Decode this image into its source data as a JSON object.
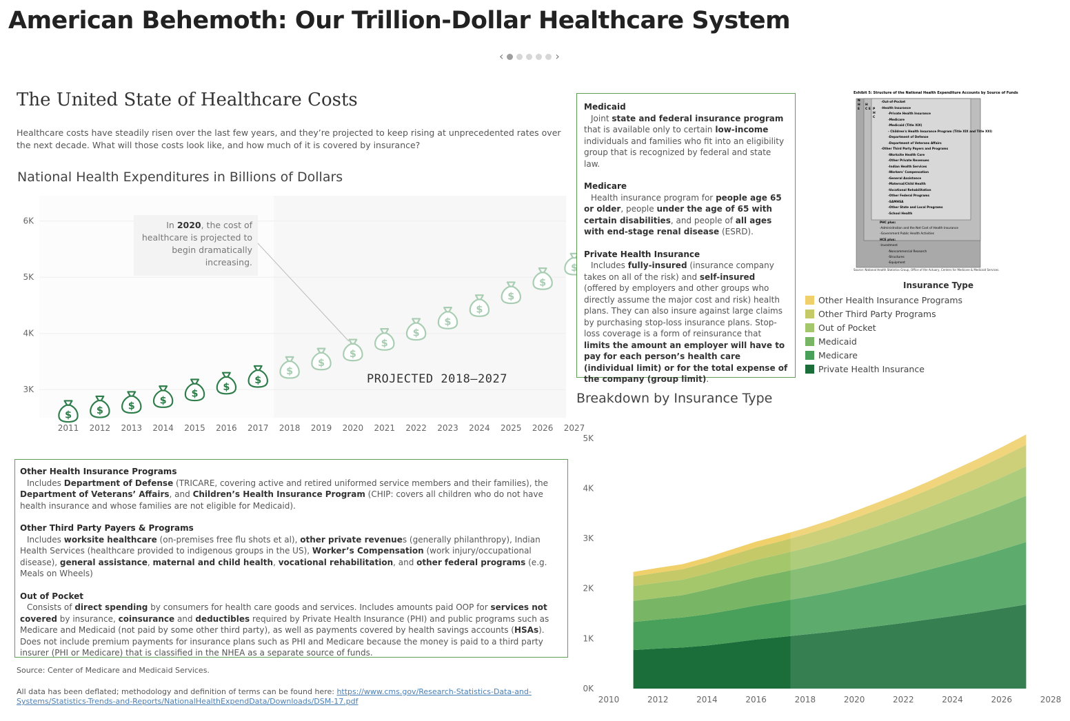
{
  "main_title": "American Behemoth: Our Trillion-Dollar Healthcare System",
  "story_nav": {
    "prev_icon": "‹",
    "next_icon": "›",
    "dots": 5,
    "active_dot": 0
  },
  "section": {
    "title": "The United State of Healthcare Costs",
    "intro": "Healthcare costs have steadily risen over the last few years, and they’re projected to keep rising at unprecedented rates over the next decade. What will those costs look like, and how much of it is covered by insurance?"
  },
  "chart_data": [
    {
      "type": "scatter",
      "title": "National Health Expenditures in Billions of Dollars",
      "marker": "money-bag-icon",
      "x": [
        "2011",
        "2012",
        "2013",
        "2014",
        "2015",
        "2016",
        "2017",
        "2018",
        "2019",
        "2020",
        "2021",
        "2022",
        "2023",
        "2024",
        "2025",
        "2026",
        "2027"
      ],
      "values": [
        2600,
        2680,
        2760,
        2860,
        2980,
        3100,
        3220,
        3380,
        3530,
        3690,
        3880,
        4060,
        4260,
        4480,
        4710,
        4960,
        5220
      ],
      "yticks": [
        "3K",
        "4K",
        "5K",
        "6K"
      ],
      "ytick_values": [
        3000,
        4000,
        5000,
        6000
      ],
      "ylim": [
        2500,
        6450
      ],
      "projected_from": "2018",
      "projection_label": "PROJECTED 2018–2027",
      "annotation": {
        "prefix": "In ",
        "year": "2020",
        "text": ", the cost of healthcare is projected to begin dramatically increasing.",
        "target": "2020"
      },
      "colors": {
        "actual": "#2e7d4a",
        "projected": "#a8cdb2",
        "projection_band": "#f7f7f7"
      }
    },
    {
      "type": "area",
      "stacked": true,
      "title": "Breakdown by Insurance Type",
      "x": [
        2011,
        2012,
        2013,
        2014,
        2015,
        2016,
        2017,
        2018,
        2019,
        2020,
        2021,
        2022,
        2023,
        2024,
        2025,
        2026,
        2027
      ],
      "xticks": [
        "2010",
        "2012",
        "2014",
        "2016",
        "2018",
        "2020",
        "2022",
        "2024",
        "2026",
        "2028"
      ],
      "xtick_values": [
        2010,
        2012,
        2014,
        2016,
        2018,
        2020,
        2022,
        2024,
        2026,
        2028
      ],
      "yticks": [
        "0K",
        "1K",
        "2K",
        "3K",
        "4K",
        "5K"
      ],
      "ytick_values": [
        0,
        1000,
        2000,
        3000,
        4000,
        5000
      ],
      "xlim": [
        2010,
        2028
      ],
      "ylim": [
        0,
        5300
      ],
      "projected_from": 2017.4,
      "series": [
        {
          "name": "Private Health Insurance",
          "color": "#1b6e39",
          "values": [
            770,
            800,
            820,
            860,
            920,
            980,
            1030,
            1080,
            1130,
            1190,
            1250,
            1310,
            1380,
            1450,
            1520,
            1600,
            1680
          ]
        },
        {
          "name": "Medicare",
          "color": "#48a05a",
          "values": [
            560,
            580,
            600,
            625,
            650,
            680,
            710,
            745,
            785,
            830,
            880,
            935,
            990,
            1050,
            1110,
            1175,
            1250
          ]
        },
        {
          "name": "Medicaid",
          "color": "#78b564",
          "values": [
            420,
            430,
            445,
            490,
            530,
            560,
            580,
            600,
            625,
            655,
            690,
            725,
            760,
            800,
            840,
            880,
            920
          ]
        },
        {
          "name": "Out of Pocket",
          "color": "#a3c76a",
          "values": [
            300,
            305,
            310,
            320,
            335,
            350,
            365,
            380,
            400,
            420,
            440,
            460,
            485,
            510,
            535,
            560,
            590
          ]
        },
        {
          "name": "Other Third Party Programs",
          "color": "#c6c967",
          "values": [
            190,
            200,
            210,
            220,
            235,
            250,
            260,
            275,
            290,
            305,
            320,
            335,
            350,
            370,
            390,
            410,
            430
          ]
        },
        {
          "name": "Other Health Insurance Programs",
          "color": "#f0d06b",
          "values": [
            90,
            95,
            100,
            105,
            110,
            115,
            120,
            125,
            132,
            140,
            148,
            156,
            165,
            175,
            185,
            195,
            205
          ]
        }
      ]
    }
  ],
  "legend": {
    "title": "Insurance Type"
  },
  "box_left": {
    "s1_head": "Other Health Insurance Programs",
    "s1_body": [
      {
        "t": "Includes "
      },
      {
        "t": "Department of Defense",
        "b": true
      },
      {
        "t": " (TRICARE, covering active and retired uniformed service members and their families), the "
      },
      {
        "t": "Department of Veterans’ Affairs",
        "b": true
      },
      {
        "t": ", and "
      },
      {
        "t": "Children’s Health Insurance Program",
        "b": true
      },
      {
        "t": " (CHIP: covers all children who do not have health insurance and whose families are not eligible for Medicaid)."
      }
    ],
    "s2_head": "Other Third Party Payers & Programs",
    "s2_body": [
      {
        "t": "Includes "
      },
      {
        "t": "worksite healthcare",
        "b": true
      },
      {
        "t": " (on-premises free flu shots et al), "
      },
      {
        "t": "other private revenue",
        "b": true
      },
      {
        "t": "s (generally philanthropy), Indian Health Services (healthcare provided to indigenous groups in the US), "
      },
      {
        "t": "Worker’s Compensation",
        "b": true
      },
      {
        "t": " (work injury/occupational disease), "
      },
      {
        "t": "general assistance",
        "b": true
      },
      {
        "t": ", "
      },
      {
        "t": "maternal and child health",
        "b": true
      },
      {
        "t": ", "
      },
      {
        "t": "vocational rehabilitation",
        "b": true
      },
      {
        "t": ", and "
      },
      {
        "t": "other federal programs",
        "b": true
      },
      {
        "t": " (e.g. Meals on Wheels)"
      }
    ],
    "s3_head": "Out of Pocket",
    "s3_body": [
      {
        "t": "Consists of "
      },
      {
        "t": "direct spending",
        "b": true
      },
      {
        "t": " by consumers for health care goods and services. Includes amounts paid OOP for "
      },
      {
        "t": "services not covered",
        "b": true
      },
      {
        "t": " by insurance, "
      },
      {
        "t": "coinsurance",
        "b": true
      },
      {
        "t": " and "
      },
      {
        "t": "deductibles",
        "b": true
      },
      {
        "t": " required by Private Health Insurance (PHI) and public programs such as Medicare and Medicaid (not paid by some other third party), as well as payments covered by health savings accounts ("
      },
      {
        "t": "HSAs",
        "b": true
      },
      {
        "t": "). Does not include premium payments for insurance plans such as PHI and Medicare because the money is paid to a third party insurer (PHI or Medicare) that is classified in the NHEA as a separate source of funds."
      }
    ]
  },
  "box_right": {
    "s1_head": "Medicaid",
    "s1_body": [
      {
        "t": "Joint "
      },
      {
        "t": "state and federal insurance program",
        "b": true
      },
      {
        "t": " that is available only to certain "
      },
      {
        "t": "low-income",
        "b": true
      },
      {
        "t": " individuals and families who fit into an eligibility group that is recognized by federal and state law."
      }
    ],
    "s2_head": "Medicare",
    "s2_body": [
      {
        "t": "Health insurance program for "
      },
      {
        "t": "people age 65 or older",
        "b": true
      },
      {
        "t": ", people "
      },
      {
        "t": "under the age of 65 with certain disabilities",
        "b": true
      },
      {
        "t": ", and people of "
      },
      {
        "t": "all ages with end-stage renal disease",
        "b": true
      },
      {
        "t": " (ESRD)."
      }
    ],
    "s3_head": "Private Health Insurance",
    "s3_body": [
      {
        "t": "Includes "
      },
      {
        "t": "fully-insured",
        "b": true
      },
      {
        "t": " (insurance company takes on all of the risk) and "
      },
      {
        "t": "self-insured",
        "b": true
      },
      {
        "t": " (offered by employers and other groups who directly assume the major cost and risk) health plans. They can also insure against large claims by purchasing stop-loss insurance plans. Stop-loss coverage is a form of reinsurance that "
      },
      {
        "t": "limits the amount an employer will have to pay for each person’s health care (individual limit) or for the total expense of the company (group limit)",
        "b": true
      },
      {
        "t": "."
      }
    ]
  },
  "exhibit": {
    "title": "Exhibit 5: Structure of the National Health Expenditure Accounts by Source of Funds",
    "side_labels": [
      "N H E",
      "H C E",
      "P H C"
    ],
    "inner_items": [
      "-Out-of-Pocket",
      "-Health Insurance",
      "-Private Health Insurance",
      "-Medicare",
      "-Medicaid (Title XIX)",
      "- Children's Health Insurance Program (Title XIX and Title XXI)",
      "-Department of Defense",
      "-Department of Veterans Affairs",
      "-Other Third Party Payers and Programs",
      "-Worksite Health Care",
      "-Other Private Revenues",
      "-Indian Health Services",
      "-Workers' Compensation",
      "-General Assistance",
      "-Maternal/Child Health",
      "-Vocational Rehabilitation",
      "-Other Federal Programs",
      "-SAMHSA",
      "-Other State and Local Programs",
      "-School Health"
    ],
    "phc_head": "PHC plus:",
    "phc_items": [
      "-Administration and the Net Cost of Health Insurance",
      "-Government Public Health Activities"
    ],
    "hce_head": "HCE plus:",
    "hce_items": [
      "-Investment",
      "-Noncommercial Research",
      "-Structures",
      "-Equipment"
    ],
    "source": "Source: National Health Statistics Group, Office of the Actuary, Centers for Medicare & Medicaid Services."
  },
  "footer": {
    "source": "Source: Center of Medicare and Medicaid Services.",
    "deflate_text": "All data has been deflated; methodology and definition of terms can be found here: ",
    "link": "https://www.cms.gov/Research-Statistics-Data-and-Systems/Statistics-Trends-and-Reports/NationalHealthExpendData/Downloads/DSM-17.pdf"
  }
}
